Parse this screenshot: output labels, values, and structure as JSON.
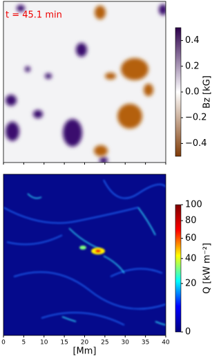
{
  "chart_data": [
    {
      "type": "heatmap",
      "annotation": "t = 45.1 min",
      "colorbar_label": "Bz [kG]",
      "clim": [
        -0.5,
        0.5
      ],
      "cticks": [
        0.4,
        0.2,
        {
          "value": 0,
          "label": "0.0"
        },
        {
          "value": -0.2,
          "label": "−0.2"
        },
        {
          "value": -0.4,
          "label": "−0.4"
        }
      ],
      "colormap": [
        "#2d004b",
        "#ffffff",
        "#7f3b08"
      ]
    },
    {
      "type": "heatmap",
      "colorbar_label": "Q [kW m⁻²]",
      "clim": [
        0,
        100
      ],
      "colorbar_gamma": 0.6,
      "cticks": [
        0,
        20,
        40,
        60,
        80,
        100
      ],
      "colormap": [
        "#00007f",
        "#0000ff",
        "#00ffff",
        "#ffff00",
        "#ff0000",
        "#7f0000"
      ],
      "xlabel": "[Mm]",
      "xlim": [
        0,
        40
      ],
      "xticks": [
        0,
        5,
        10,
        15,
        20,
        25,
        30,
        35,
        40
      ]
    }
  ]
}
